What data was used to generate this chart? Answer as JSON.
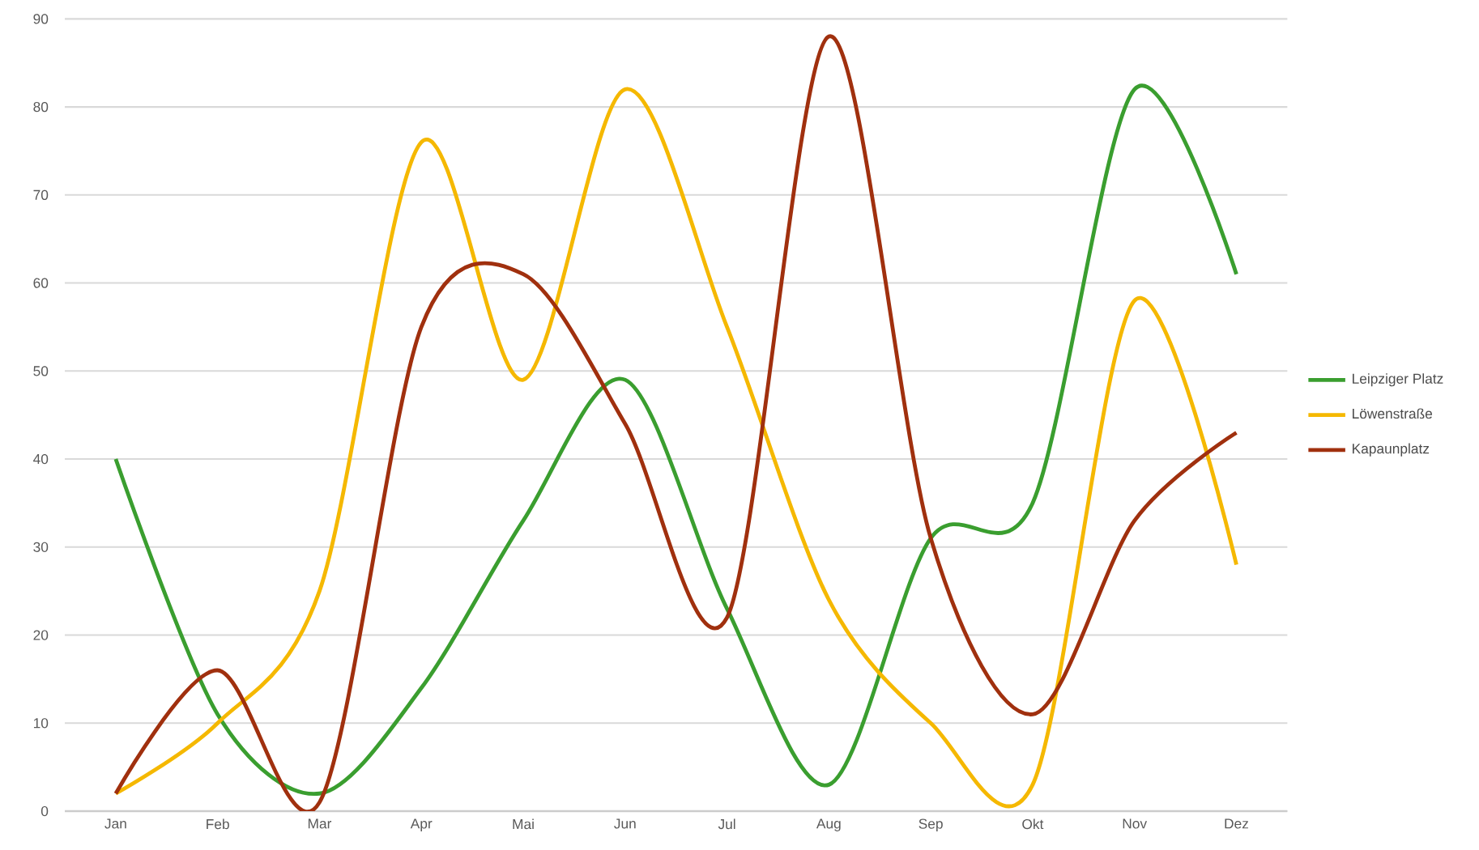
{
  "chart_data": {
    "type": "line",
    "categories": [
      "Jan",
      "Feb",
      "Mar",
      "Apr",
      "Mai",
      "Jun",
      "Jul",
      "Aug",
      "Sep",
      "Okt",
      "Nov",
      "Dez"
    ],
    "series": [
      {
        "name": "Leipziger Platz",
        "color": "#3a9e2f",
        "values": [
          40,
          11,
          2,
          14,
          33,
          49,
          23,
          3,
          31,
          35,
          82,
          61
        ]
      },
      {
        "name": "Löwenstraße",
        "color": "#f5b800",
        "values": [
          2,
          10,
          25,
          76,
          49,
          82,
          55,
          24,
          10,
          3,
          58,
          28
        ]
      },
      {
        "name": "Kapaunplatz",
        "color": "#a0300e",
        "values": [
          2,
          16,
          1,
          55,
          61,
          44,
          22,
          88,
          31,
          11,
          33,
          43
        ]
      }
    ],
    "ylim": [
      0,
      90
    ],
    "yticks": [
      0,
      10,
      20,
      30,
      40,
      50,
      60,
      70,
      80,
      90
    ],
    "grid": "y",
    "legend": "right",
    "marker": "none",
    "line_style": "solid"
  }
}
